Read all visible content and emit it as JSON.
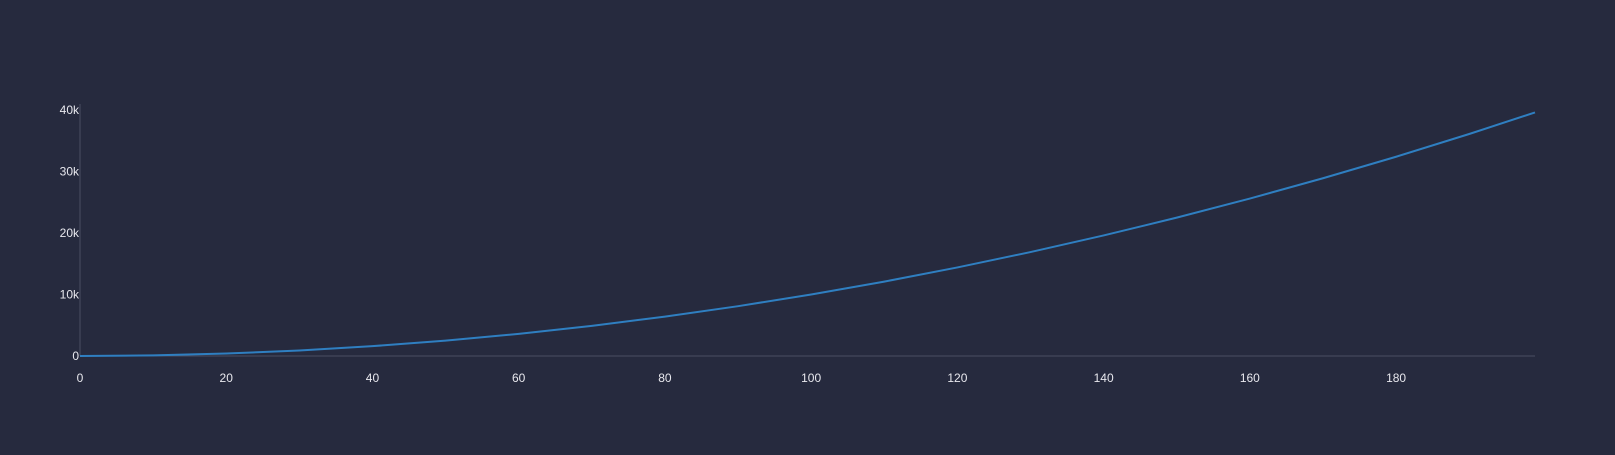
{
  "chart_data": {
    "type": "line",
    "title": "",
    "xlabel": "",
    "ylabel": "",
    "xlim": [
      0,
      199
    ],
    "ylim": [
      0,
      40000
    ],
    "x_ticks": [
      0,
      20,
      40,
      60,
      80,
      100,
      120,
      140,
      160,
      180
    ],
    "x_tick_labels": [
      "0",
      "20",
      "40",
      "60",
      "80",
      "100",
      "120",
      "140",
      "160",
      "180"
    ],
    "y_ticks": [
      0,
      10000,
      20000,
      30000,
      40000
    ],
    "y_tick_labels": [
      "0",
      "10k",
      "20k",
      "30k",
      "40k"
    ],
    "grid": false,
    "legend": "none",
    "colors": {
      "background": "#262a3e",
      "line": "#2f7fc1",
      "axis": "#4a4e63"
    },
    "series": [
      {
        "x": [
          0,
          10,
          20,
          30,
          40,
          50,
          60,
          70,
          80,
          90,
          100,
          110,
          120,
          130,
          140,
          150,
          160,
          170,
          180,
          190,
          199
        ],
        "values": [
          0,
          100,
          400,
          900,
          1600,
          2500,
          3600,
          4900,
          6400,
          8100,
          10000,
          12100,
          14400,
          16900,
          19600,
          22500,
          25600,
          28900,
          32400,
          36100,
          39601
        ]
      }
    ]
  }
}
